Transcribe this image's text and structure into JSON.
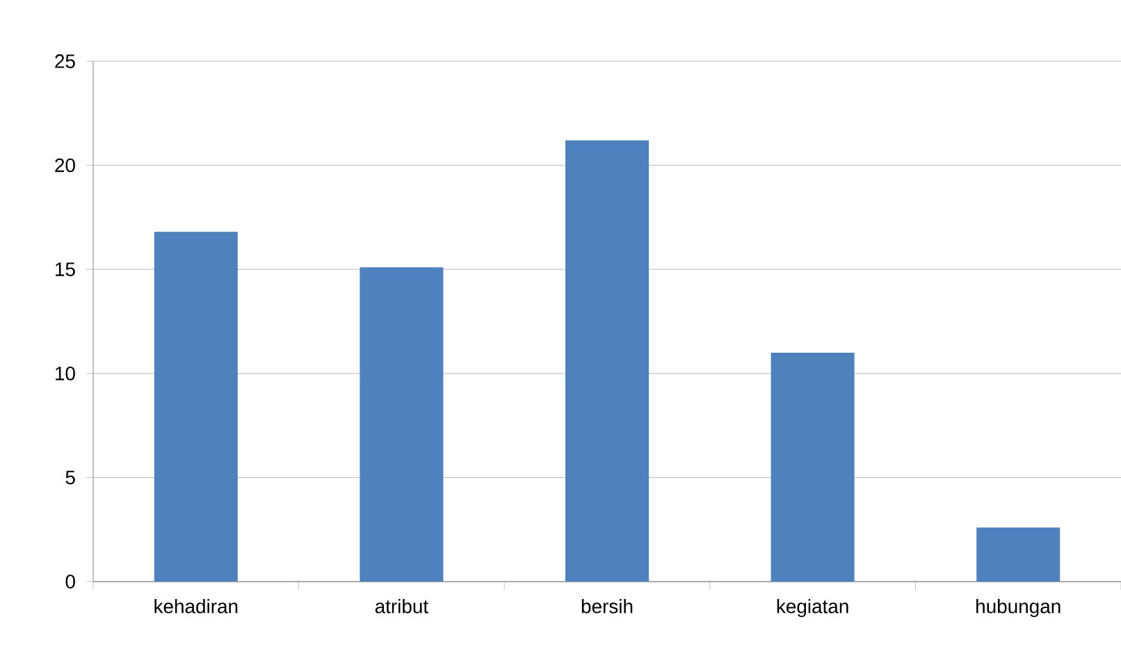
{
  "chart_data": {
    "type": "bar",
    "categories": [
      "kehadiran",
      "atribut",
      "bersih",
      "kegiatan",
      "hubungan"
    ],
    "values": [
      16.8,
      15.1,
      21.2,
      11.0,
      2.6
    ],
    "color": "#4f81bd",
    "ylim": [
      0,
      25
    ],
    "yticks": [
      0,
      5,
      10,
      15,
      20,
      25
    ],
    "grid": "y"
  }
}
